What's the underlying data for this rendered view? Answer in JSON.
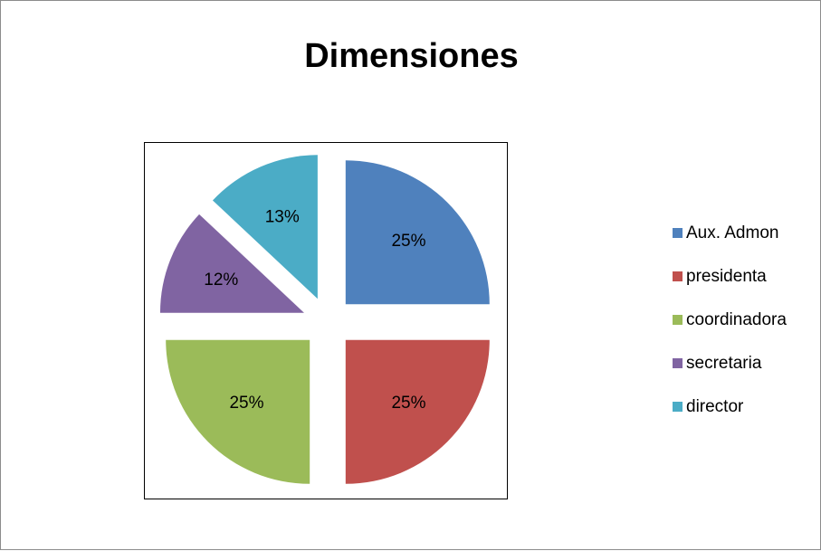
{
  "chart_data": {
    "type": "pie",
    "title": "Dimensiones",
    "categories": [
      "Aux. Admon",
      "presidenta",
      "coordinadora",
      "secretaria",
      "director"
    ],
    "values": [
      25,
      25,
      25,
      12,
      13
    ],
    "labels": [
      "25%",
      "25%",
      "25%",
      "12%",
      "13%"
    ],
    "colors": [
      "#4f81bd",
      "#c0504d",
      "#9bbb59",
      "#8064a2",
      "#4bacc6"
    ],
    "exploded": true,
    "legend_position": "right"
  }
}
